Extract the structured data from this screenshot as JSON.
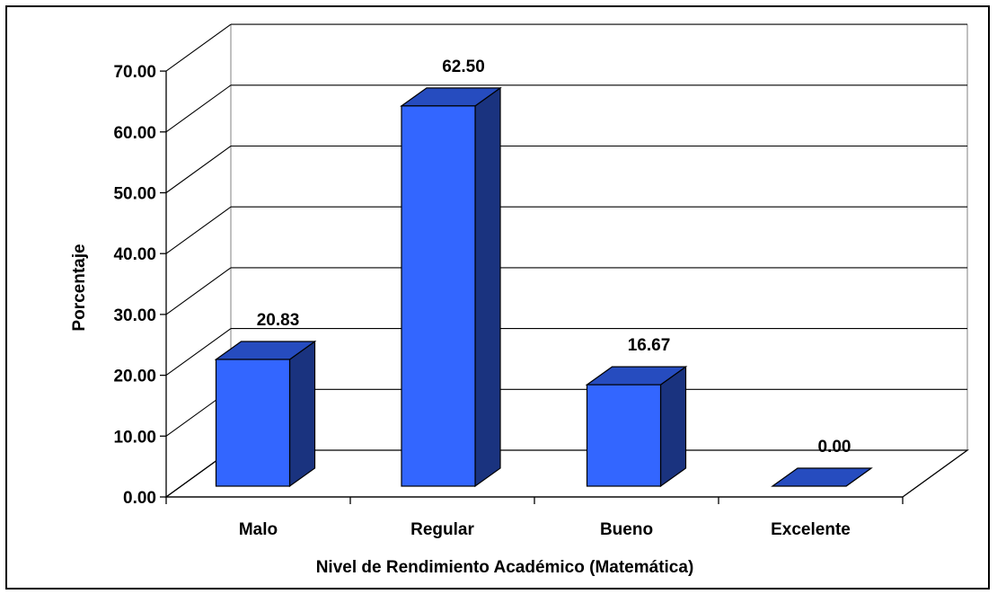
{
  "chart_data": {
    "type": "bar",
    "categories": [
      "Malo",
      "Regular",
      "Bueno",
      "Excelente"
    ],
    "values": [
      20.83,
      62.5,
      16.67,
      0.0
    ],
    "value_labels": [
      "20.83",
      "62.50",
      "16.67",
      "0.00"
    ],
    "title": "",
    "xlabel": "Nivel de Rendimiento Académico (Matemática)",
    "ylabel": "Porcentaje",
    "ylim": [
      0,
      70
    ],
    "yticks": [
      0,
      10,
      20,
      30,
      40,
      50,
      60,
      70
    ],
    "ytick_labels": [
      "0.00",
      "10.00",
      "20.00",
      "30.00",
      "40.00",
      "50.00",
      "60.00",
      "70.00"
    ],
    "grid": true,
    "legend": "none",
    "style": "3d-column",
    "colors": {
      "bar_front": "#3366FF",
      "bar_side": "#1A337F",
      "bar_top": "#264CBF",
      "grid": "#000000"
    }
  }
}
